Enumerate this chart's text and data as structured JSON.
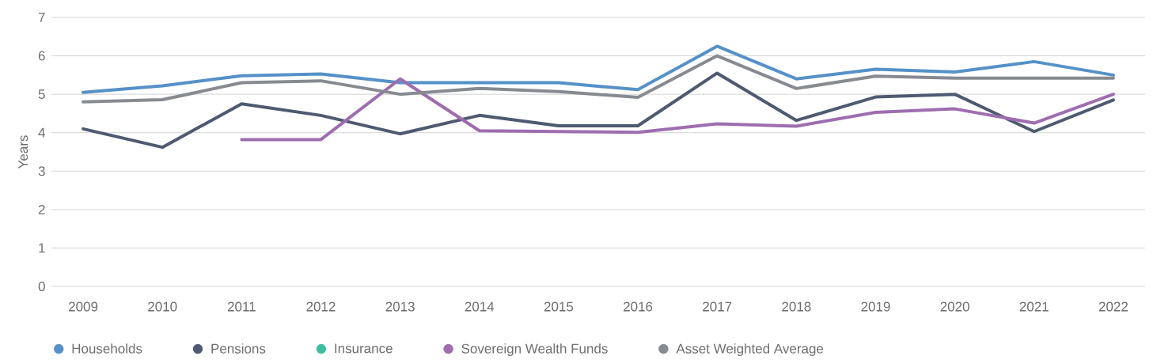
{
  "chart_data": {
    "type": "line",
    "ylabel": "Years",
    "categories": [
      "2009",
      "2010",
      "2011",
      "2012",
      "2013",
      "2014",
      "2015",
      "2016",
      "2017",
      "2018",
      "2019",
      "2020",
      "2021",
      "2022"
    ],
    "series": [
      {
        "name": "Households",
        "color": "#5591c8",
        "values": [
          5.05,
          5.22,
          5.48,
          5.53,
          5.3,
          5.3,
          5.3,
          5.12,
          6.25,
          5.4,
          5.65,
          5.58,
          5.85,
          5.5
        ]
      },
      {
        "name": "Pensions",
        "color": "#4d5a70",
        "values": [
          4.1,
          3.62,
          4.75,
          4.45,
          3.97,
          4.45,
          4.18,
          4.18,
          5.55,
          4.32,
          4.93,
          5.0,
          4.03,
          4.85
        ]
      },
      {
        "name": "Insurance",
        "color": "#3fbf9f",
        "values": [
          null,
          null,
          null,
          null,
          null,
          null,
          null,
          null,
          null,
          null,
          null,
          null,
          null,
          null
        ]
      },
      {
        "name": "Sovereign Wealth Funds",
        "color": "#9e6db0",
        "values": [
          null,
          null,
          3.82,
          3.82,
          5.4,
          4.05,
          4.03,
          4.01,
          4.23,
          4.17,
          4.53,
          4.62,
          4.25,
          5.0
        ]
      },
      {
        "name": "Asset Weighted Average",
        "color": "#878a90",
        "values": [
          4.8,
          4.86,
          5.3,
          5.35,
          5.0,
          5.15,
          5.07,
          4.92,
          6.0,
          5.15,
          5.47,
          5.42,
          5.42,
          5.42
        ]
      }
    ],
    "ylim": [
      0,
      7
    ],
    "yticks": [
      0,
      1,
      2,
      3,
      4,
      5,
      6,
      7
    ],
    "grid": "y",
    "legend": "bottom",
    "line_style": "solid"
  }
}
